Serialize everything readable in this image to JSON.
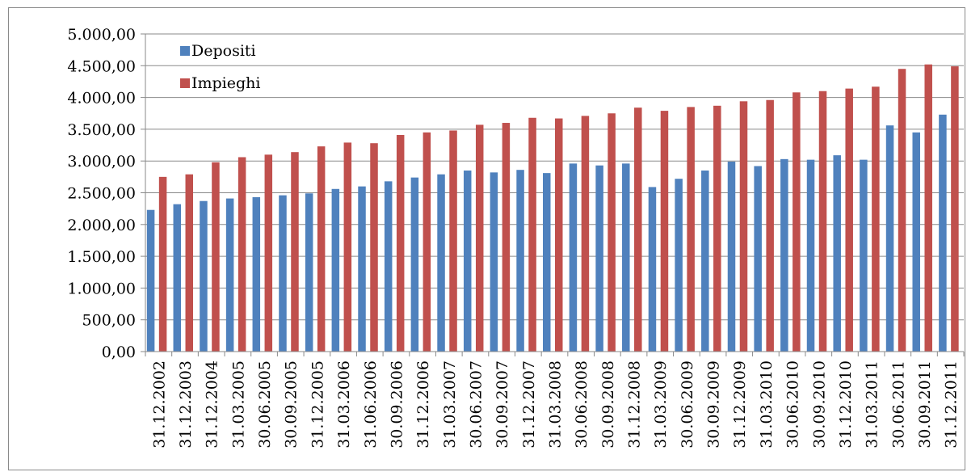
{
  "chart_data": {
    "type": "bar",
    "title": "",
    "xlabel": "",
    "ylabel": "",
    "ylim": [
      0,
      5000
    ],
    "yticks": [
      {
        "value": 0,
        "label": "0,00"
      },
      {
        "value": 500,
        "label": "500,00"
      },
      {
        "value": 1000,
        "label": "1.000,00"
      },
      {
        "value": 1500,
        "label": "1.500,00"
      },
      {
        "value": 2000,
        "label": "2.000,00"
      },
      {
        "value": 2500,
        "label": "2.500,00"
      },
      {
        "value": 3000,
        "label": "3.000,00"
      },
      {
        "value": 3500,
        "label": "3.500,00"
      },
      {
        "value": 4000,
        "label": "4.000,00"
      },
      {
        "value": 4500,
        "label": "4.500,00"
      },
      {
        "value": 5000,
        "label": "5.000,00"
      }
    ],
    "grid": true,
    "legend": "top-left",
    "categories": [
      "31.12.2002",
      "31.12.2003",
      "31.12.2004",
      "31.03.2005",
      "30.06.2005",
      "30.09.2005",
      "31.12.2005",
      "31.03.2006",
      "31.06.2006",
      "30.09.2006",
      "31.12.2006",
      "31.03.2007",
      "30.06.2007",
      "30.09.2007",
      "31.12.2007",
      "31.03.2008",
      "30.06.2008",
      "30.09.2008",
      "31.12.2008",
      "31.03.2009",
      "30.06.2009",
      "30.09.2009",
      "31.12.2009",
      "31.03.2010",
      "30.06.2010",
      "30.09.2010",
      "31.12.2010",
      "31.03.2011",
      "30.06.2011",
      "30.09.2011",
      "31.12.2011"
    ],
    "series": [
      {
        "name": "Depositi",
        "color": "#4f81bd",
        "values": [
          2230,
          2320,
          2370,
          2410,
          2430,
          2460,
          2490,
          2560,
          2600,
          2680,
          2740,
          2790,
          2850,
          2820,
          2860,
          2810,
          2960,
          2930,
          2960,
          2590,
          2720,
          2850,
          2990,
          2920,
          3030,
          3020,
          3090,
          3020,
          3560,
          3450,
          3730
        ]
      },
      {
        "name": "Impieghi",
        "color": "#c0504d",
        "values": [
          2750,
          2790,
          2980,
          3060,
          3100,
          3140,
          3230,
          3290,
          3280,
          3410,
          3450,
          3480,
          3570,
          3600,
          3680,
          3670,
          3710,
          3750,
          3840,
          3790,
          3850,
          3870,
          3940,
          3960,
          4080,
          4100,
          4140,
          4170,
          4450,
          4520,
          4490
        ]
      }
    ]
  }
}
